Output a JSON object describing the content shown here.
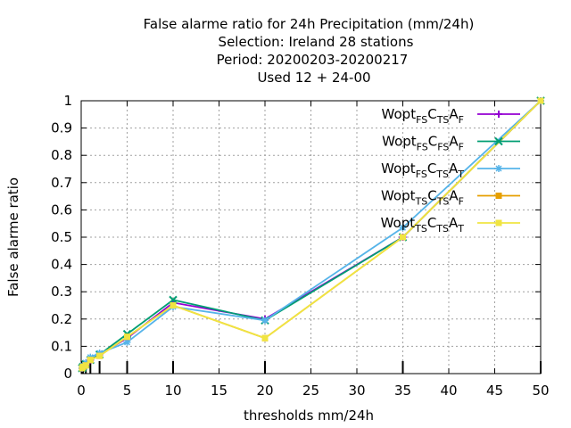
{
  "chart_data": {
    "type": "line",
    "title_lines": [
      "False alarme ratio  for 24h Precipitation (mm/24h)",
      "Selection: Ireland      28 stations",
      "Period: 20200203-20200217",
      "Used  12 + 24-00"
    ],
    "xlabel": "thresholds mm/24h",
    "ylabel": "False alarme ratio",
    "xlim": [
      0,
      50
    ],
    "ylim": [
      0,
      1
    ],
    "xticks": [
      0,
      5,
      10,
      15,
      20,
      25,
      30,
      35,
      40,
      45,
      50
    ],
    "yticks": [
      0,
      0.1,
      0.2,
      0.3,
      0.4,
      0.5,
      0.6,
      0.7,
      0.8,
      0.9,
      1
    ],
    "grid": true,
    "legend_position": "top-right",
    "threshold_markers": [
      0.1,
      0.2,
      0.5,
      1,
      2,
      5,
      10,
      20,
      35,
      50
    ],
    "x": [
      0.1,
      0.2,
      0.5,
      1,
      2,
      5,
      10,
      20,
      35,
      50
    ],
    "series": [
      {
        "name": "Wopt FS C TS A F",
        "name_parts": [
          "Wopt",
          "FS",
          "C",
          "TS",
          "A",
          "F"
        ],
        "color": "#9400d3",
        "marker": "plus",
        "values": [
          0.02,
          0.025,
          0.03,
          0.05,
          0.07,
          0.13,
          0.26,
          0.2,
          0.5,
          1.0
        ]
      },
      {
        "name": "Wopt FS C FS A F",
        "name_parts": [
          "Wopt",
          "FS",
          "C",
          "FS",
          "A",
          "F"
        ],
        "color": "#009e73",
        "marker": "cross",
        "values": [
          0.02,
          0.025,
          0.035,
          0.05,
          0.07,
          0.145,
          0.27,
          0.195,
          0.5,
          1.0
        ]
      },
      {
        "name": "Wopt FS C TS A T",
        "name_parts": [
          "Wopt",
          "FS",
          "C",
          "TS",
          "A",
          "T"
        ],
        "color": "#56b4e9",
        "marker": "star",
        "values": [
          0.02,
          0.03,
          0.04,
          0.06,
          0.075,
          0.115,
          0.245,
          0.195,
          0.535,
          1.0
        ]
      },
      {
        "name": "Wopt TS C TS A F",
        "name_parts": [
          "Wopt",
          "TS",
          "C",
          "TS",
          "A",
          "F"
        ],
        "color": "#e69f00",
        "marker": "square",
        "values": [
          0.02,
          0.025,
          0.03,
          0.05,
          0.065,
          0.135,
          0.25,
          0.13,
          0.5,
          1.0
        ]
      },
      {
        "name": "Wopt TS C TS A T",
        "name_parts": [
          "Wopt",
          "TS",
          "C",
          "TS",
          "A",
          "T"
        ],
        "color": "#f0e442",
        "marker": "square",
        "values": [
          0.02,
          0.025,
          0.03,
          0.05,
          0.065,
          0.135,
          0.25,
          0.13,
          0.5,
          1.0
        ]
      }
    ]
  }
}
